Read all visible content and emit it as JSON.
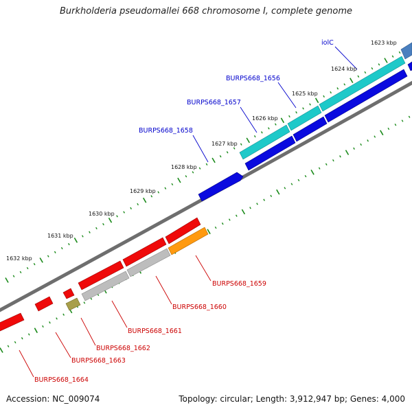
{
  "title": "Burkholderia pseudomallei 668 chromosome I, complete genome",
  "footer": {
    "accession": "Accession: NC_009074",
    "summary": "Topology: circular; Length: 3,912,947 bp; Genes: 4,000"
  },
  "colors": {
    "backbone": "#6e6e6e",
    "tick": "#1a8a1a",
    "forward_label": "#0000cc",
    "reverse_label": "#cc0000",
    "gene_blue": "#0a0adf",
    "gene_cyan": "#1ec9c9",
    "gene_red": "#ef0a0a",
    "gene_grey": "#bdbdbd",
    "gene_orange": "#ff9a10",
    "gene_olive": "#a89e4a"
  },
  "kbp_labels": [
    "1623 kbp",
    "1624 kbp",
    "1625 kbp",
    "1626 kbp",
    "1627 kbp",
    "1628 kbp",
    "1629 kbp",
    "1630 kbp",
    "1631 kbp",
    "1632 kbp"
  ],
  "forward_genes": [
    {
      "label": "iolC",
      "color": "#0000cc"
    },
    {
      "label": "BURPS668_1656",
      "color": "#0000cc"
    },
    {
      "label": "BURPS668_1657",
      "color": "#0000cc"
    },
    {
      "label": "BURPS668_1658",
      "color": "#0000cc"
    }
  ],
  "reverse_genes": [
    {
      "label": "BURPS668_1659",
      "color": "#cc0000"
    },
    {
      "label": "BURPS668_1660",
      "color": "#cc0000"
    },
    {
      "label": "BURPS668_1661",
      "color": "#cc0000"
    },
    {
      "label": "BURPS668_1662",
      "color": "#cc0000"
    },
    {
      "label": "BURPS668_1663",
      "color": "#cc0000"
    },
    {
      "label": "BURPS668_1664",
      "color": "#cc0000"
    }
  ]
}
